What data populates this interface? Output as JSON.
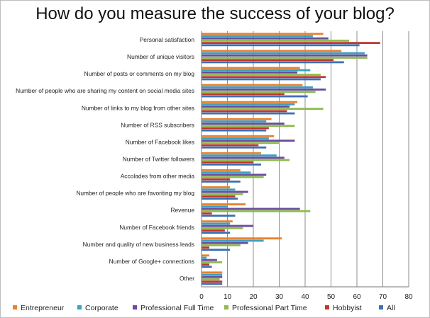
{
  "chart_data": {
    "type": "bar",
    "orientation": "horizontal",
    "title": "How do you measure the success of your blog?",
    "categories": [
      "Personal satisfaction",
      "Number of unique visitors",
      "Number of posts or comments on my blog",
      "Number of people who are sharing my content on social media sites",
      "Number of links to my blog from other sites",
      "Number of RSS subscribers",
      "Number of Facebook likes",
      "Number of Twitter followers",
      "Accolades from other media",
      "Number of people who are  favoriting  my blog",
      "Revenue",
      "Number of Facebook friends",
      "Number and quality of new business leads",
      "Number of Google+ connections",
      "Other"
    ],
    "series": [
      {
        "name": "Entrepreneur",
        "color": "#e8812c",
        "values": [
          47,
          54,
          38,
          39,
          37,
          27,
          28,
          23,
          15,
          11,
          17,
          12,
          31,
          3,
          8
        ]
      },
      {
        "name": "Corporate",
        "color": "#3a9fc4",
        "values": [
          43,
          63,
          42,
          43,
          36,
          25,
          26,
          29,
          19,
          13,
          10,
          11,
          24,
          2,
          8
        ]
      },
      {
        "name": "Professional  Full Time",
        "color": "#6a4b9e",
        "values": [
          49,
          64,
          37,
          48,
          34,
          32,
          36,
          32,
          25,
          18,
          38,
          20,
          18,
          6,
          8
        ]
      },
      {
        "name": "Professional Part Time",
        "color": "#8dbb4c",
        "values": [
          57,
          64,
          46,
          44,
          47,
          36,
          30,
          34,
          24,
          16,
          42,
          16,
          15,
          8,
          7
        ]
      },
      {
        "name": "Hobbyist",
        "color": "#c0372f",
        "values": [
          69,
          51,
          48,
          32,
          33,
          26,
          22,
          20,
          11,
          13,
          4,
          9,
          3,
          3,
          8
        ]
      },
      {
        "name": "All",
        "color": "#3e6fb3",
        "values": [
          61,
          55,
          46,
          41,
          36,
          25,
          25,
          23,
          15,
          14,
          13,
          11,
          11,
          4,
          8
        ]
      }
    ],
    "xlim": [
      0,
      80
    ],
    "xticks": [
      0,
      10,
      20,
      30,
      40,
      50,
      60,
      70,
      80
    ],
    "grid": true,
    "legend_position": "bottom"
  }
}
